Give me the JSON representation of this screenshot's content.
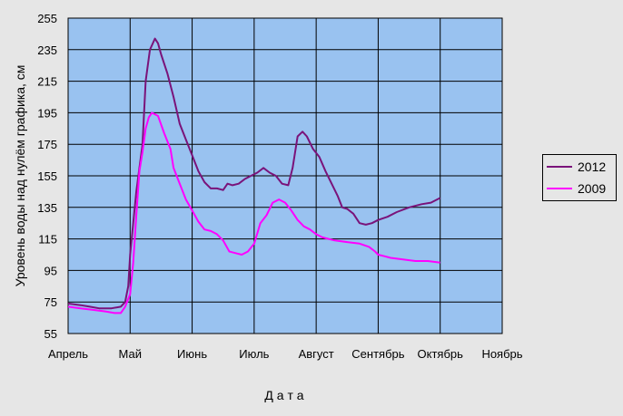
{
  "chart_data": {
    "type": "line",
    "xlabel": "Д а т а",
    "ylabel": "Уровень воды над нулём графика, см",
    "ylim": [
      55,
      255
    ],
    "yticks": [
      55,
      75,
      95,
      115,
      135,
      155,
      175,
      195,
      215,
      235,
      255
    ],
    "xlim": [
      0,
      7
    ],
    "xticks": [
      {
        "label": "Апрель",
        "x": 0
      },
      {
        "label": "Май",
        "x": 1
      },
      {
        "label": "Июнь",
        "x": 2
      },
      {
        "label": "Июль",
        "x": 3
      },
      {
        "label": "Август",
        "x": 4
      },
      {
        "label": "Сентябрь",
        "x": 5
      },
      {
        "label": "Октябрь",
        "x": 6
      },
      {
        "label": "Ноябрь",
        "x": 7
      }
    ],
    "grid": true,
    "plot_background": "#99c2f0",
    "legend_position": "right",
    "series": [
      {
        "name": "2012",
        "color": "#7a137a",
        "points": [
          [
            0.0,
            74
          ],
          [
            0.2,
            73
          ],
          [
            0.35,
            72
          ],
          [
            0.5,
            71
          ],
          [
            0.7,
            71
          ],
          [
            0.85,
            72
          ],
          [
            0.92,
            75
          ],
          [
            0.97,
            85
          ],
          [
            1.0,
            105
          ],
          [
            1.05,
            125
          ],
          [
            1.1,
            145
          ],
          [
            1.15,
            160
          ],
          [
            1.2,
            175
          ],
          [
            1.25,
            215
          ],
          [
            1.32,
            235
          ],
          [
            1.4,
            242
          ],
          [
            1.45,
            239
          ],
          [
            1.5,
            232
          ],
          [
            1.6,
            220
          ],
          [
            1.7,
            205
          ],
          [
            1.8,
            188
          ],
          [
            1.9,
            178
          ],
          [
            2.0,
            168
          ],
          [
            2.1,
            158
          ],
          [
            2.2,
            151
          ],
          [
            2.3,
            147
          ],
          [
            2.4,
            147
          ],
          [
            2.5,
            146
          ],
          [
            2.57,
            150
          ],
          [
            2.65,
            149
          ],
          [
            2.75,
            150
          ],
          [
            2.85,
            153
          ],
          [
            2.95,
            155
          ],
          [
            3.05,
            157
          ],
          [
            3.15,
            160
          ],
          [
            3.25,
            157
          ],
          [
            3.35,
            155
          ],
          [
            3.45,
            150
          ],
          [
            3.55,
            149
          ],
          [
            3.62,
            160
          ],
          [
            3.7,
            180
          ],
          [
            3.78,
            183
          ],
          [
            3.85,
            180
          ],
          [
            3.95,
            172
          ],
          [
            4.05,
            167
          ],
          [
            4.15,
            158
          ],
          [
            4.25,
            150
          ],
          [
            4.35,
            142
          ],
          [
            4.42,
            135
          ],
          [
            4.5,
            134
          ],
          [
            4.6,
            131
          ],
          [
            4.7,
            125
          ],
          [
            4.8,
            124
          ],
          [
            4.9,
            125
          ],
          [
            5.0,
            127
          ],
          [
            5.15,
            129
          ],
          [
            5.3,
            132
          ],
          [
            5.5,
            135
          ],
          [
            5.7,
            137
          ],
          [
            5.85,
            138
          ],
          [
            6.0,
            141
          ]
        ]
      },
      {
        "name": "2009",
        "color": "#ff00ff",
        "points": [
          [
            0.0,
            72
          ],
          [
            0.2,
            71
          ],
          [
            0.4,
            70
          ],
          [
            0.6,
            69
          ],
          [
            0.75,
            68
          ],
          [
            0.85,
            68
          ],
          [
            0.92,
            72
          ],
          [
            1.0,
            80
          ],
          [
            1.05,
            100
          ],
          [
            1.1,
            130
          ],
          [
            1.15,
            158
          ],
          [
            1.2,
            170
          ],
          [
            1.25,
            185
          ],
          [
            1.3,
            192
          ],
          [
            1.35,
            195
          ],
          [
            1.45,
            193
          ],
          [
            1.55,
            182
          ],
          [
            1.65,
            172
          ],
          [
            1.7,
            160
          ],
          [
            1.8,
            150
          ],
          [
            1.9,
            140
          ],
          [
            2.0,
            133
          ],
          [
            2.1,
            126
          ],
          [
            2.2,
            121
          ],
          [
            2.3,
            120
          ],
          [
            2.4,
            118
          ],
          [
            2.5,
            114
          ],
          [
            2.6,
            107
          ],
          [
            2.7,
            106
          ],
          [
            2.8,
            105
          ],
          [
            2.9,
            107
          ],
          [
            3.0,
            112
          ],
          [
            3.1,
            125
          ],
          [
            3.2,
            130
          ],
          [
            3.3,
            138
          ],
          [
            3.4,
            140
          ],
          [
            3.5,
            138
          ],
          [
            3.6,
            133
          ],
          [
            3.7,
            127
          ],
          [
            3.8,
            123
          ],
          [
            3.9,
            121
          ],
          [
            4.0,
            118
          ],
          [
            4.1,
            116
          ],
          [
            4.2,
            115
          ],
          [
            4.3,
            114
          ],
          [
            4.5,
            113
          ],
          [
            4.7,
            112
          ],
          [
            4.85,
            110
          ],
          [
            4.95,
            107
          ],
          [
            5.0,
            105
          ],
          [
            5.1,
            104
          ],
          [
            5.2,
            103
          ],
          [
            5.4,
            102
          ],
          [
            5.6,
            101
          ],
          [
            5.8,
            101
          ],
          [
            6.0,
            100
          ]
        ]
      }
    ]
  }
}
